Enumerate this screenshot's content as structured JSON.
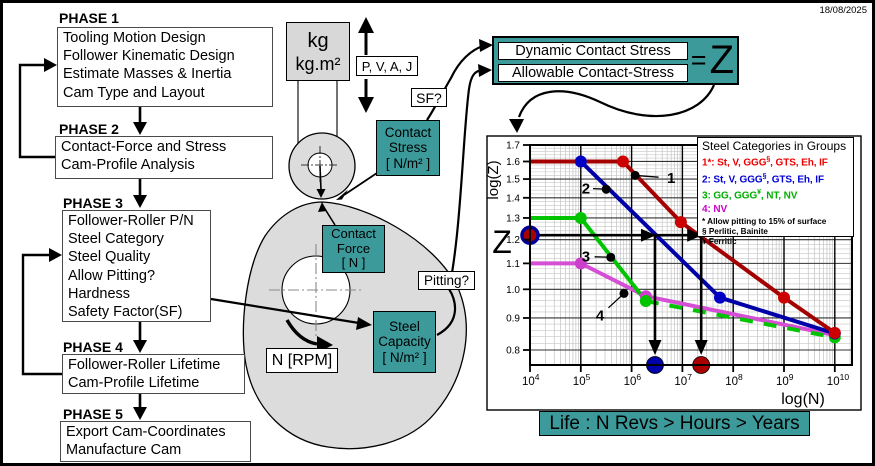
{
  "date": "18/08/2025",
  "phases": [
    {
      "title": "PHASE 1",
      "items": [
        "Tooling Motion Design",
        "Follower Kinematic Design",
        "Estimate Masses & Inertia",
        "Cam Type and Layout"
      ]
    },
    {
      "title": "PHASE 2",
      "items": [
        "Contact-Force and Stress",
        "Cam-Profile Analysis"
      ]
    },
    {
      "title": "PHASE 3",
      "items": [
        "Follower-Roller P/N",
        "Steel Category",
        "Steel Quality",
        "Allow Pitting?",
        "Hardness",
        "Safety Factor(SF)"
      ]
    },
    {
      "title": "PHASE 4",
      "items": [
        "Follower-Roller Lifetime",
        "Cam-Profile Lifetime"
      ]
    },
    {
      "title": "PHASE 5",
      "items": [
        "Export Cam-Coordinates",
        "Manufacture Cam"
      ]
    }
  ],
  "mass_box": {
    "line1": "kg",
    "line2": "kg.m²"
  },
  "labels": {
    "pvaj": "P, V, A, J",
    "sf": "SF?",
    "pitting": "Pitting?",
    "rpm": "N [RPM]"
  },
  "teal_boxes": {
    "contact_stress": {
      "l1": "Contact",
      "l2": "Stress",
      "l3": "[ N/m² ]"
    },
    "contact_force": {
      "l1": "Contact",
      "l2": "Force",
      "l3": "[ N ]"
    },
    "steel_capacity": {
      "l1": "Steel",
      "l2": "Capacity",
      "l3": "[ N/m² ]"
    }
  },
  "ratio": {
    "numerator": "Dynamic Contact Stress",
    "denominator": "Allowable Contact-Stress",
    "equals": "=",
    "z": "Z"
  },
  "life_banner": "Life : N Revs > Hours > Years",
  "colors": {
    "teal": "#3d9a9b",
    "gray_fill": "#dcdcdc"
  },
  "chart_data": {
    "type": "line",
    "xlabel": "log(N)",
    "ylabel": "log(Z)",
    "y_big_label": "Z",
    "x_scale": "log",
    "y_scale": "log",
    "x_ticks_exp": [
      4,
      5,
      6,
      7,
      8,
      9,
      10
    ],
    "y_ticks": [
      0.8,
      0.9,
      1.0,
      1.1,
      1.2,
      1.3,
      1.4,
      1.5,
      1.6,
      1.7
    ],
    "xlim_exp": [
      4,
      10
    ],
    "ylim": [
      0.8,
      1.7
    ],
    "grid": true,
    "legend_position": "top-right",
    "legend": {
      "title": "Steel Categories in Groups",
      "entries": [
        {
          "num": "1*:",
          "color": "#f00000",
          "segs": [
            {
              "t": "St, V, GGG"
            },
            {
              "t": "§",
              "sup": true
            },
            {
              "t": ", GTS, Eh, IF"
            }
          ]
        },
        {
          "num": "2:",
          "color": "#0000dd",
          "segs": [
            {
              "t": "St, V, GGG"
            },
            {
              "t": "§",
              "sup": true
            },
            {
              "t": ", GTS, Eh, IF"
            }
          ]
        },
        {
          "num": "3:",
          "color": "#00b000",
          "segs": [
            {
              "t": "GG, GGG"
            },
            {
              "t": "¥",
              "sup": true
            },
            {
              "t": ", NT, NV"
            }
          ]
        },
        {
          "num": "4:",
          "color": "#cc00cc",
          "segs": [
            {
              "t": "NV"
            }
          ]
        }
      ],
      "footnotes": [
        "* Allow pitting to 15% of surface",
        "§ Perlitic, Bainite",
        "¥ Ferritic"
      ]
    },
    "series": [
      {
        "name": "Group 4",
        "color": "#d44fd4",
        "marker_color": "#cc3fcc",
        "points": [
          [
            4,
            1.1
          ],
          [
            5,
            1.1
          ],
          [
            6.28,
            0.975
          ],
          [
            10,
            0.845
          ]
        ],
        "markers": [
          [
            5,
            1.1
          ],
          [
            6.28,
            0.975
          ]
        ]
      },
      {
        "name": "Group 3",
        "color": "#00c400",
        "marker_color": "#00c400",
        "dash_tail_from": 2,
        "points": [
          [
            4,
            1.3
          ],
          [
            5,
            1.3
          ],
          [
            6.28,
            0.958
          ],
          [
            10,
            0.838
          ]
        ],
        "markers": [
          [
            5,
            1.3
          ],
          [
            6.28,
            0.958
          ],
          [
            10,
            0.838
          ]
        ]
      },
      {
        "name": "Group 2",
        "color": "#0000a8",
        "marker_color": "#0000c4",
        "points": [
          [
            4,
            1.6
          ],
          [
            5,
            1.6
          ],
          [
            7.74,
            0.97
          ],
          [
            10,
            0.85
          ]
        ],
        "markers": [
          [
            5,
            1.6
          ],
          [
            7.74,
            0.97
          ],
          [
            10,
            0.85
          ]
        ]
      },
      {
        "name": "Group 1",
        "color": "#a40000",
        "marker_color": "#cc0000",
        "points": [
          [
            4,
            1.6
          ],
          [
            5.83,
            1.6
          ],
          [
            6.97,
            1.28
          ],
          [
            9.0,
            0.97
          ],
          [
            10,
            0.852
          ]
        ],
        "markers": [
          [
            5.83,
            1.6
          ],
          [
            6.97,
            1.28
          ],
          [
            9.0,
            0.97
          ],
          [
            10,
            0.852
          ]
        ]
      }
    ],
    "example": {
      "z": 1.22,
      "marker_fill": "#aa0000",
      "marker_ring": "#000099",
      "drops": [
        {
          "logN": 6.46,
          "dot_color": "#0000aa"
        },
        {
          "logN": 7.37,
          "dot_color": "#aa0000"
        }
      ]
    },
    "curve_tags": [
      {
        "n": "1",
        "dot": [
          6.07,
          1.52
        ],
        "label": [
          6.78,
          1.505
        ]
      },
      {
        "n": "2",
        "dot": [
          5.5,
          1.445
        ],
        "label": [
          5.1,
          1.45
        ]
      },
      {
        "n": "3",
        "dot": [
          5.59,
          1.125
        ],
        "label": [
          5.1,
          1.128
        ]
      },
      {
        "n": "4",
        "dot": [
          5.85,
          0.985
        ],
        "label": [
          5.38,
          0.908
        ]
      }
    ]
  }
}
